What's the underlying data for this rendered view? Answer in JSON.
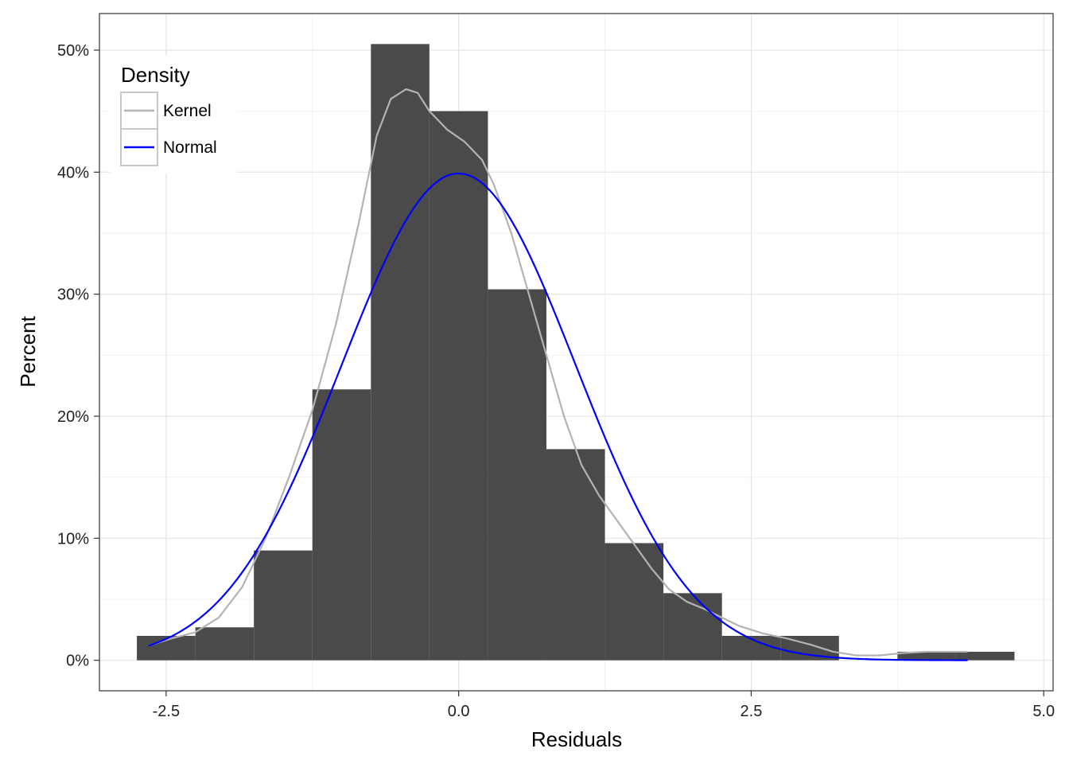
{
  "chart_data": {
    "type": "bar",
    "subtype": "histogram-with-density-curves",
    "xlabel": "Residuals",
    "ylabel": "Percent",
    "xlim": [
      -3.07,
      5.08
    ],
    "ylim": [
      -0.025,
      0.53
    ],
    "x_ticks": [
      -2.5,
      0.0,
      2.5,
      5.0
    ],
    "x_tick_labels": [
      "-2.5",
      "0.0",
      "2.5",
      "5.0"
    ],
    "y_ticks": [
      0,
      0.1,
      0.2,
      0.3,
      0.4,
      0.5
    ],
    "y_tick_labels": [
      "0%",
      "10%",
      "20%",
      "30%",
      "40%",
      "50%"
    ],
    "grid": true,
    "bar_color": "#4a4a4a",
    "bin_width": 0.5,
    "bins": [
      {
        "x0": -2.75,
        "x1": -2.25,
        "value": 0.02
      },
      {
        "x0": -2.25,
        "x1": -1.75,
        "value": 0.027
      },
      {
        "x0": -1.75,
        "x1": -1.25,
        "value": 0.09
      },
      {
        "x0": -1.25,
        "x1": -0.75,
        "value": 0.222
      },
      {
        "x0": -0.75,
        "x1": -0.25,
        "value": 0.505
      },
      {
        "x0": -0.25,
        "x1": 0.25,
        "value": 0.45
      },
      {
        "x0": 0.25,
        "x1": 0.75,
        "value": 0.304
      },
      {
        "x0": 0.75,
        "x1": 1.25,
        "value": 0.173
      },
      {
        "x0": 1.25,
        "x1": 1.75,
        "value": 0.096
      },
      {
        "x0": 1.75,
        "x1": 2.25,
        "value": 0.055
      },
      {
        "x0": 2.25,
        "x1": 2.75,
        "value": 0.02
      },
      {
        "x0": 2.75,
        "x1": 3.25,
        "value": 0.02
      },
      {
        "x0": 3.25,
        "x1": 3.75,
        "value": 0.0
      },
      {
        "x0": 3.75,
        "x1": 4.25,
        "value": 0.007
      },
      {
        "x0": 4.25,
        "x1": 4.75,
        "value": 0.007
      }
    ],
    "legend": {
      "title": "Density",
      "placement": "top-left",
      "entries": [
        {
          "label": "Kernel",
          "color": "#b3b3b3"
        },
        {
          "label": "Normal",
          "color": "#0000ff"
        }
      ]
    },
    "series": [
      {
        "name": "Kernel",
        "color": "#b3b3b3",
        "points": [
          [
            -2.65,
            0.012
          ],
          [
            -2.45,
            0.018
          ],
          [
            -2.25,
            0.023
          ],
          [
            -2.05,
            0.035
          ],
          [
            -1.85,
            0.06
          ],
          [
            -1.65,
            0.1
          ],
          [
            -1.45,
            0.15
          ],
          [
            -1.25,
            0.205
          ],
          [
            -1.05,
            0.275
          ],
          [
            -0.85,
            0.36
          ],
          [
            -0.7,
            0.43
          ],
          [
            -0.58,
            0.46
          ],
          [
            -0.45,
            0.468
          ],
          [
            -0.35,
            0.465
          ],
          [
            -0.25,
            0.45
          ],
          [
            -0.1,
            0.435
          ],
          [
            0.05,
            0.425
          ],
          [
            0.2,
            0.41
          ],
          [
            0.3,
            0.39
          ],
          [
            0.45,
            0.35
          ],
          [
            0.6,
            0.3
          ],
          [
            0.75,
            0.25
          ],
          [
            0.9,
            0.2
          ],
          [
            1.05,
            0.16
          ],
          [
            1.2,
            0.135
          ],
          [
            1.35,
            0.115
          ],
          [
            1.5,
            0.095
          ],
          [
            1.65,
            0.075
          ],
          [
            1.8,
            0.058
          ],
          [
            1.95,
            0.048
          ],
          [
            2.1,
            0.042
          ],
          [
            2.25,
            0.035
          ],
          [
            2.4,
            0.028
          ],
          [
            2.6,
            0.022
          ],
          [
            2.8,
            0.018
          ],
          [
            3.0,
            0.013
          ],
          [
            3.2,
            0.007
          ],
          [
            3.4,
            0.004
          ],
          [
            3.6,
            0.004
          ],
          [
            3.8,
            0.006
          ],
          [
            4.0,
            0.007
          ],
          [
            4.2,
            0.007
          ],
          [
            4.35,
            0.007
          ]
        ]
      },
      {
        "name": "Normal",
        "color": "#0000ff",
        "distribution": {
          "mean": 0,
          "sd": 1
        },
        "x_range": [
          -2.65,
          4.35
        ]
      }
    ]
  }
}
